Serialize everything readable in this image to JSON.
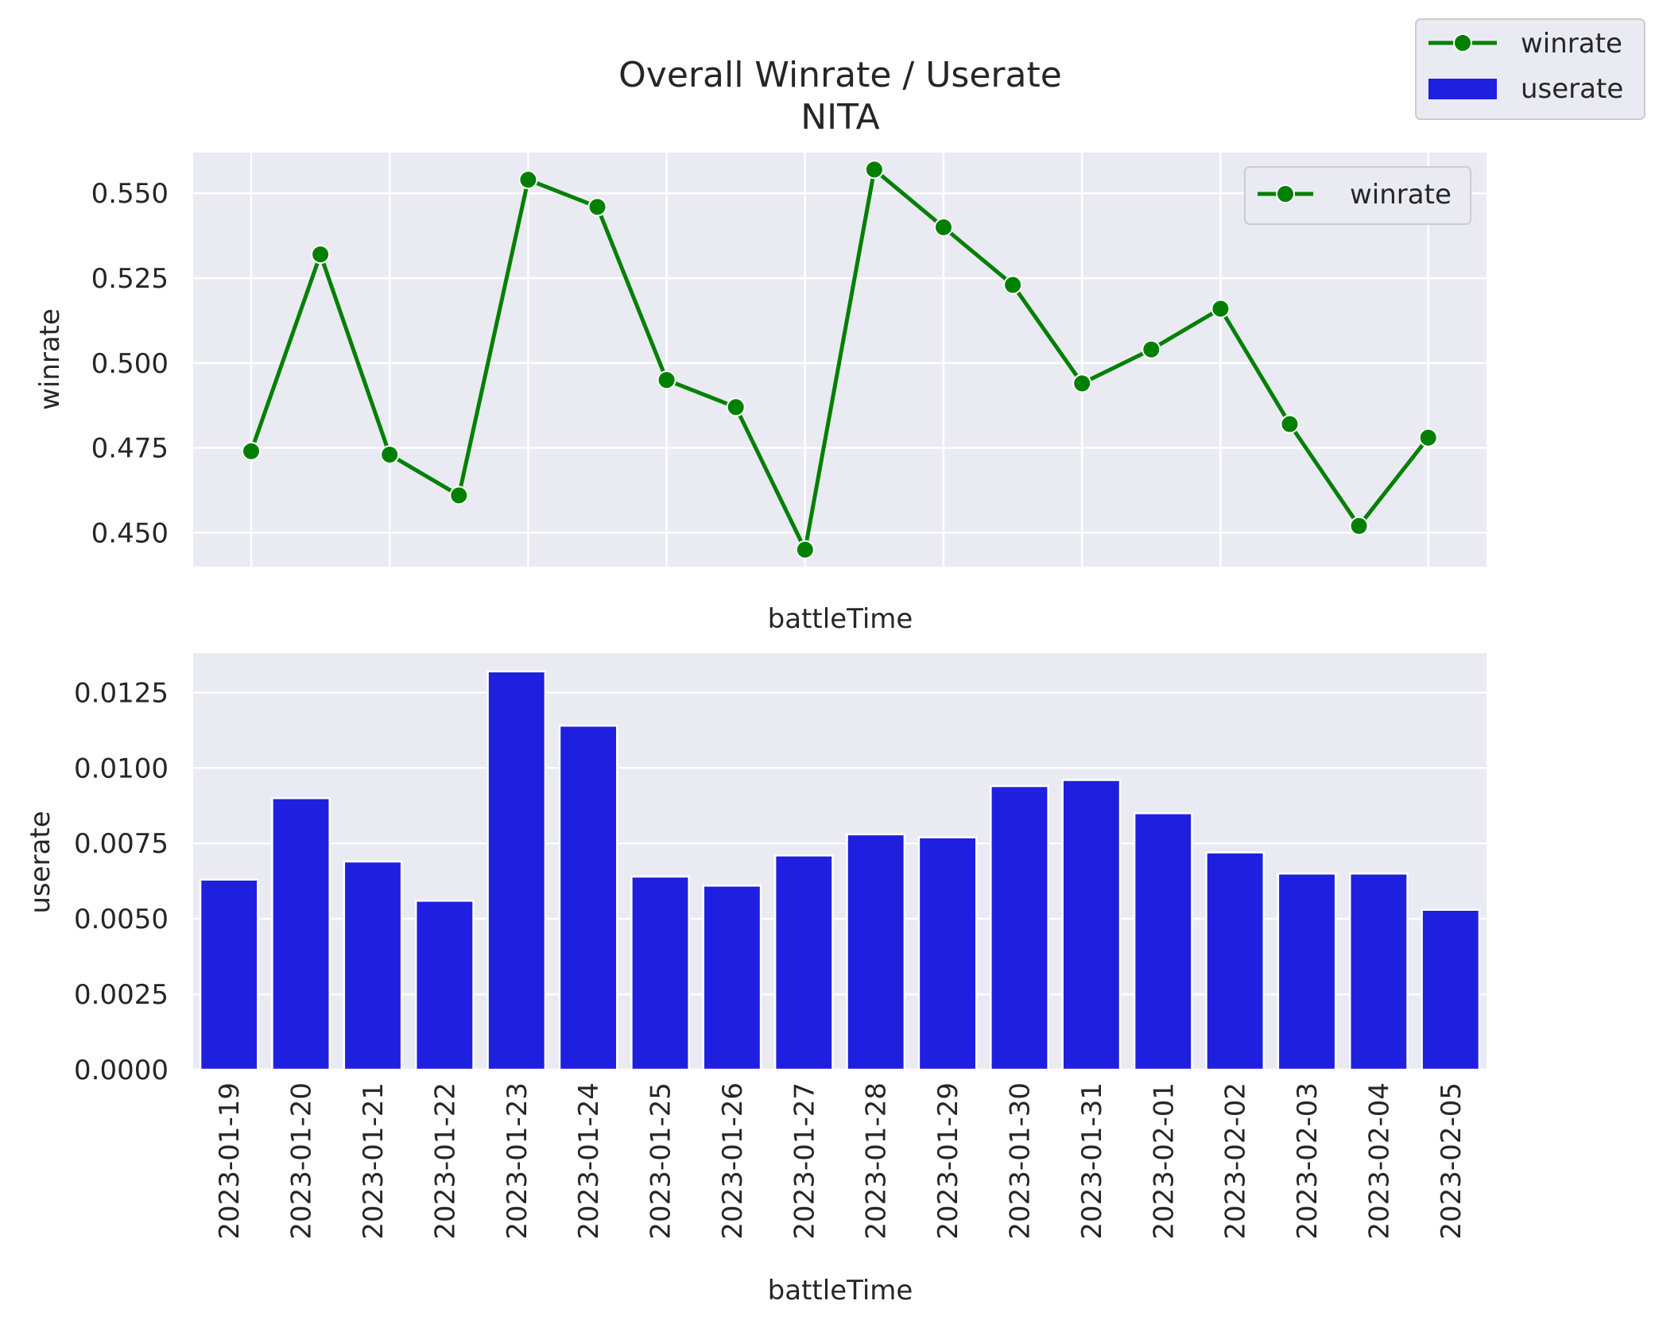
{
  "title": "Overall Winrate / Userate",
  "subtitle": "NITA",
  "colors": {
    "winrate": "#008000",
    "userate": "#1f1fe0",
    "panel_bg": "#eaeaf2",
    "grid": "#ffffff",
    "text": "#262626"
  },
  "figure_legend": {
    "placement": "top-right",
    "entries": [
      "winrate",
      "userate"
    ]
  },
  "chart_data": [
    {
      "type": "line",
      "x": [
        "2023-01-19",
        "2023-01-20",
        "2023-01-21",
        "2023-01-22",
        "2023-01-23",
        "2023-01-24",
        "2023-01-25",
        "2023-01-26",
        "2023-01-27",
        "2023-01-28",
        "2023-01-29",
        "2023-01-30",
        "2023-01-31",
        "2023-02-01",
        "2023-02-02",
        "2023-02-03",
        "2023-02-04",
        "2023-02-05"
      ],
      "series": [
        {
          "name": "winrate",
          "values": [
            0.474,
            0.532,
            0.473,
            0.461,
            0.554,
            0.546,
            0.495,
            0.487,
            0.445,
            0.557,
            0.54,
            0.523,
            0.494,
            0.504,
            0.516,
            0.482,
            0.452,
            0.478
          ]
        }
      ],
      "xlabel": "battleTime",
      "ylabel": "winrate",
      "ylim": [
        0.44,
        0.562
      ],
      "yticks": [
        "0.450",
        "0.475",
        "0.500",
        "0.525",
        "0.550"
      ],
      "xtick_positions": [
        "2023-01-19",
        "2023-01-21",
        "2023-01-23",
        "2023-01-25",
        "2023-01-27",
        "2023-01-29",
        "2023-01-31",
        "2023-02-02",
        "2023-02-05"
      ],
      "grid": true,
      "legend": {
        "placement": "top-right",
        "entries": [
          "winrate"
        ]
      }
    },
    {
      "type": "bar",
      "categories": [
        "2023-01-19",
        "2023-01-20",
        "2023-01-21",
        "2023-01-22",
        "2023-01-23",
        "2023-01-24",
        "2023-01-25",
        "2023-01-26",
        "2023-01-27",
        "2023-01-28",
        "2023-01-29",
        "2023-01-30",
        "2023-01-31",
        "2023-02-01",
        "2023-02-02",
        "2023-02-03",
        "2023-02-04",
        "2023-02-05"
      ],
      "series": [
        {
          "name": "userate",
          "values": [
            0.0063,
            0.009,
            0.0069,
            0.0056,
            0.0132,
            0.0114,
            0.0064,
            0.0061,
            0.0071,
            0.0078,
            0.0077,
            0.0094,
            0.0096,
            0.0085,
            0.0072,
            0.0065,
            0.0065,
            0.0053
          ]
        }
      ],
      "xlabel": "battleTime",
      "ylabel": "userate",
      "ylim": [
        0,
        0.0138
      ],
      "yticks": [
        "0.0000",
        "0.0025",
        "0.0050",
        "0.0075",
        "0.0100",
        "0.0125"
      ],
      "grid": true
    }
  ]
}
